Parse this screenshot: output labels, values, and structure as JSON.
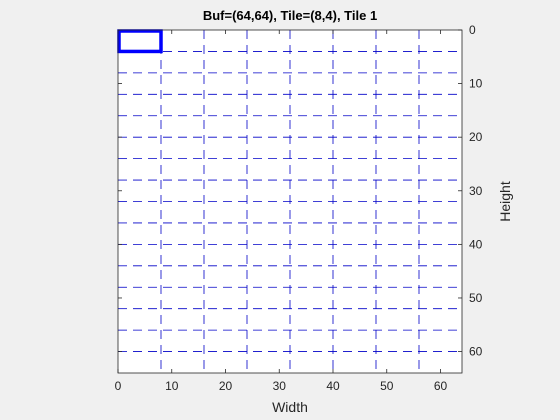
{
  "chart_data": {
    "type": "heatmap",
    "title": "Buf=(64,64), Tile=(8,4), Tile 1",
    "xlabel": "Width",
    "ylabel": "Height",
    "xlim": [
      0,
      64
    ],
    "ylim": [
      64,
      0
    ],
    "y_axis_location": "right",
    "x_ticks": [
      0,
      10,
      20,
      30,
      40,
      50,
      60
    ],
    "y_ticks": [
      0,
      10,
      20,
      30,
      40,
      50,
      60
    ],
    "buffer_size": [
      64,
      64
    ],
    "tile_size": [
      8,
      4
    ],
    "tile_grid_x": [
      0,
      8,
      16,
      24,
      32,
      40,
      48,
      56,
      64
    ],
    "tile_grid_y": [
      0,
      4,
      8,
      12,
      16,
      20,
      24,
      28,
      32,
      36,
      40,
      44,
      48,
      52,
      56,
      60,
      64
    ],
    "highlighted_tile": {
      "index": 1,
      "x": [
        0,
        8
      ],
      "y": [
        0,
        4
      ]
    },
    "colors": {
      "grid": "#0000c8",
      "highlight": "#0000ff",
      "axes_background": "#ffffff",
      "figure_background": "#f0f0f0",
      "axis": "#262626"
    },
    "grid_style": "dashed"
  }
}
